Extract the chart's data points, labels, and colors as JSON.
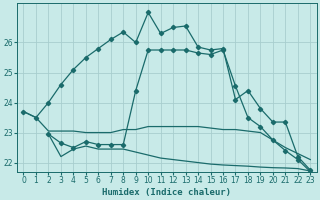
{
  "xlabel": "Humidex (Indice chaleur)",
  "background_color": "#c8eae8",
  "grid_color": "#a8cece",
  "line_color": "#1a6b6b",
  "xlim": [
    -0.5,
    23.5
  ],
  "ylim": [
    21.7,
    27.3
  ],
  "yticks": [
    22,
    23,
    24,
    25,
    26
  ],
  "xticks": [
    0,
    1,
    2,
    3,
    4,
    5,
    6,
    7,
    8,
    9,
    10,
    11,
    12,
    13,
    14,
    15,
    16,
    17,
    18,
    19,
    20,
    21,
    22,
    23
  ],
  "curve1_x": [
    0,
    1,
    2,
    3,
    4,
    5,
    6,
    7,
    8,
    9,
    10,
    11,
    12,
    13,
    14,
    15,
    16,
    17,
    18,
    19,
    20,
    21,
    22,
    23
  ],
  "curve1_y": [
    23.7,
    23.5,
    24.0,
    24.6,
    25.1,
    25.5,
    25.8,
    26.1,
    26.35,
    26.0,
    27.0,
    26.3,
    26.5,
    26.55,
    25.85,
    25.75,
    25.8,
    24.1,
    24.4,
    23.8,
    23.35,
    23.35,
    22.2,
    21.75
  ],
  "curve2_x": [
    0,
    1,
    2,
    3,
    4,
    5,
    6,
    7,
    8,
    9,
    10,
    11,
    12,
    13,
    14,
    15,
    16,
    17,
    18,
    19,
    20,
    21,
    22,
    23
  ],
  "curve2_y": [
    23.7,
    23.5,
    23.05,
    23.05,
    23.05,
    23.0,
    23.0,
    23.0,
    23.1,
    23.1,
    23.2,
    23.2,
    23.2,
    23.2,
    23.2,
    23.15,
    23.1,
    23.1,
    23.05,
    23.0,
    22.75,
    22.5,
    22.3,
    22.1
  ],
  "curve3_x": [
    2,
    3,
    4,
    5,
    6,
    7,
    8,
    9,
    10,
    11,
    12,
    13,
    14,
    15,
    16,
    17,
    18,
    19,
    20,
    21,
    22,
    23
  ],
  "curve3_y": [
    22.95,
    22.65,
    22.5,
    22.7,
    22.6,
    22.6,
    22.6,
    24.4,
    25.75,
    25.75,
    25.75,
    25.75,
    25.65,
    25.6,
    25.75,
    24.55,
    23.5,
    23.2,
    22.75,
    22.4,
    22.1,
    21.7
  ],
  "curve4_x": [
    2,
    3,
    4,
    5,
    6,
    7,
    8,
    9,
    10,
    11,
    12,
    13,
    14,
    15,
    16,
    17,
    18,
    19,
    20,
    21,
    22,
    23
  ],
  "curve4_y": [
    22.95,
    22.2,
    22.45,
    22.55,
    22.45,
    22.45,
    22.45,
    22.35,
    22.25,
    22.15,
    22.1,
    22.05,
    22.0,
    21.95,
    21.92,
    21.9,
    21.88,
    21.85,
    21.83,
    21.82,
    21.8,
    21.72
  ]
}
